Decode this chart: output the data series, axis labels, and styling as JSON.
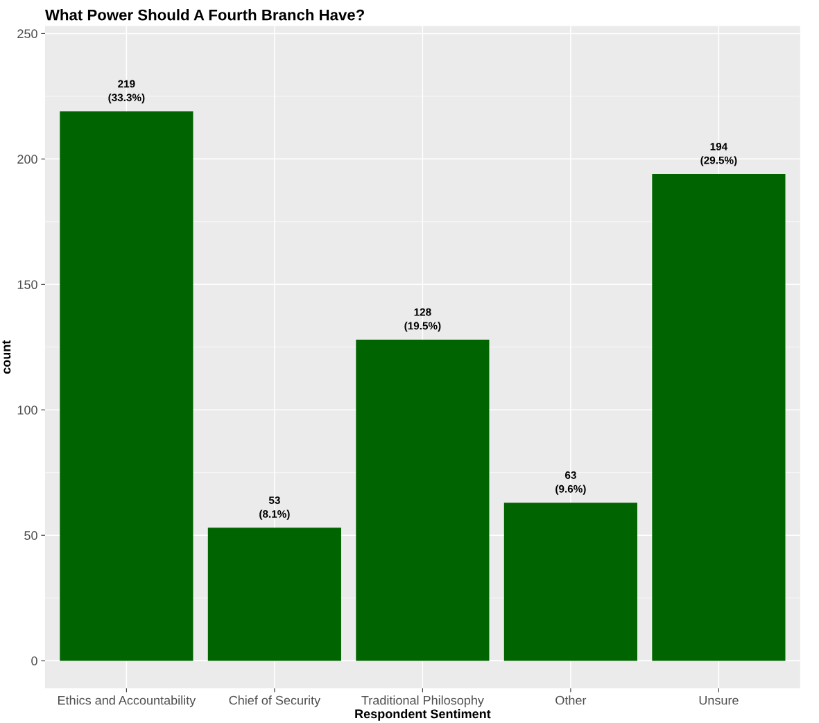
{
  "chart_data": {
    "type": "bar",
    "title": "What Power Should A Fourth Branch Have?",
    "xlabel": "Respondent Sentiment",
    "ylabel": "count",
    "categories": [
      "Ethics and Accountability",
      "Chief of Security",
      "Traditional Philosophy",
      "Other",
      "Unsure"
    ],
    "values": [
      219,
      53,
      128,
      63,
      194
    ],
    "value_labels": [
      "219\n(33.3%)",
      "53\n(8.1%)",
      "128\n(19.5%)",
      "63\n(9.6%)",
      "194\n(29.5%)"
    ],
    "color": "#006400",
    "ylim": [
      -11,
      253
    ],
    "yticks": [
      0,
      50,
      100,
      150,
      200,
      250
    ],
    "grid": true
  }
}
